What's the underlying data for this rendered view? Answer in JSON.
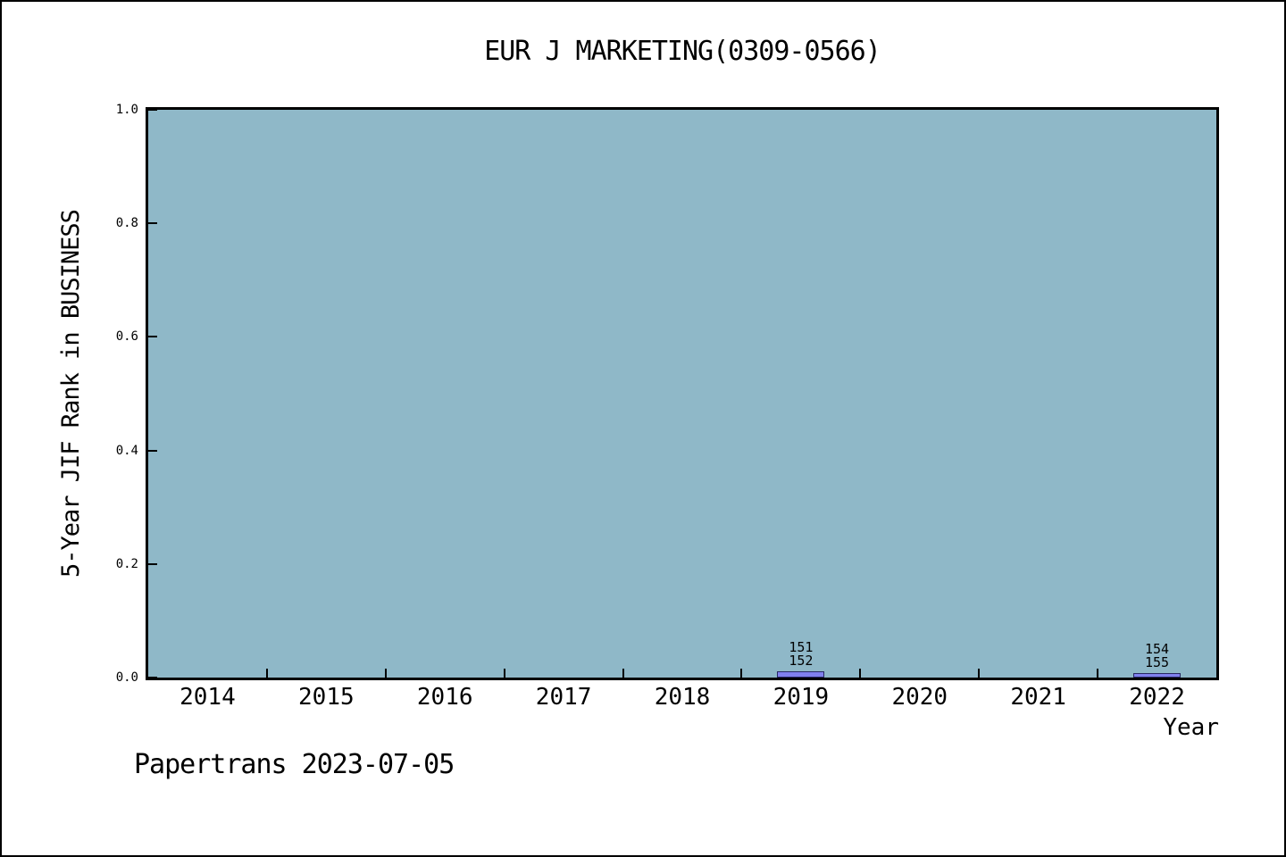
{
  "page": {
    "footer": "Papertrans 2023-07-05",
    "background_color": "#ffffff",
    "frame_border_color": "#000000"
  },
  "chart_data": {
    "type": "bar",
    "title": "EUR J MARKETING(0309-0566)",
    "xlabel": "Year",
    "ylabel": "5-Year JIF Rank in BUSINESS",
    "xlim": [
      2013.5,
      2022.5
    ],
    "ylim": [
      0,
      1.0
    ],
    "yticks": [
      0.0,
      0.2,
      0.4,
      0.6,
      0.8,
      1.0
    ],
    "x_categories": [
      2014,
      2015,
      2016,
      2017,
      2018,
      2019,
      2020,
      2021,
      2022
    ],
    "xtick_boundaries": [
      2014.5,
      2015.5,
      2016.5,
      2017.5,
      2018.5,
      2019.5,
      2020.5,
      2021.5
    ],
    "grid": false,
    "legend": null,
    "plot_bg_color": "#8fb8c8",
    "bar_fill_color": "#8080ee",
    "bar_edge_color": "#282864",
    "bar_width_years": 0.4,
    "bars": [
      {
        "x": 2019,
        "value": 0.011,
        "annotation_lines": [
          "151",
          "152"
        ]
      },
      {
        "x": 2022,
        "value": 0.008,
        "annotation_lines": [
          "154",
          "155"
        ]
      }
    ]
  }
}
